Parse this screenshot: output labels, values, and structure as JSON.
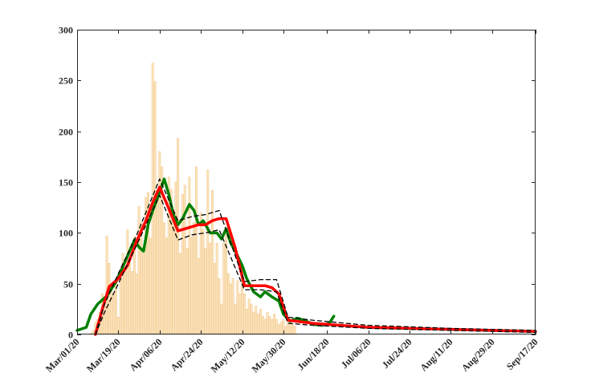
{
  "chart_data": {
    "type": "bar",
    "title": "",
    "xlabel": "",
    "ylabel": "",
    "ylim": [
      0,
      300
    ],
    "yticks": [
      0,
      50,
      100,
      150,
      200,
      250,
      300
    ],
    "xlim": [
      "2020-03-01",
      "2020-09-17"
    ],
    "xticks": [
      "2020-03-01",
      "2020-03-19",
      "2020-04-06",
      "2020-04-24",
      "2020-05-12",
      "2020-05-30",
      "2020-06-18",
      "2020-07-06",
      "2020-07-24",
      "2020-08-11",
      "2020-08-29",
      "2020-09-17"
    ],
    "xtick_labels": [
      "Mar/01/20",
      "Mar/19/20",
      "Apr/06/20",
      "Apr/24/20",
      "May/12/20",
      "May/30/20",
      "Jun/18/20",
      "Jul/06/20",
      "Jul/24/20",
      "Aug/11/20",
      "Aug/29/20",
      "Sep/17/20"
    ],
    "grid": false,
    "bars": {
      "start_date": "2020-03-01",
      "color": "#fbe3bd",
      "edge_color": "#f2c98a",
      "values": [
        0,
        0,
        0,
        0,
        0,
        0,
        1,
        4,
        12,
        15,
        22,
        40,
        28,
        97,
        70,
        45,
        40,
        52,
        17,
        55,
        80,
        65,
        103,
        70,
        62,
        96,
        60,
        126,
        110,
        80,
        135,
        140,
        95,
        267,
        249,
        140,
        180,
        165,
        110,
        95,
        155,
        143,
        120,
        150,
        193,
        80,
        138,
        147,
        85,
        155,
        96,
        110,
        165,
        75,
        120,
        103,
        85,
        162,
        90,
        142,
        70,
        90,
        55,
        30,
        90,
        100,
        60,
        50,
        55,
        30,
        53,
        40,
        65,
        40,
        25,
        35,
        30,
        22,
        28,
        20,
        25,
        18,
        15,
        22,
        18,
        15,
        20,
        15,
        10,
        12,
        15,
        8,
        12,
        10,
        10,
        8,
        0,
        0,
        0,
        0,
        0,
        0,
        0,
        0,
        0,
        0,
        0,
        0,
        0,
        0,
        0,
        0,
        0,
        0,
        0,
        0,
        0,
        0,
        0,
        0,
        0,
        0,
        0,
        0,
        0,
        0,
        0,
        0,
        0,
        0,
        0,
        0,
        0,
        0,
        0,
        0,
        0,
        0,
        0,
        0,
        0,
        0,
        0,
        0,
        0,
        0,
        0,
        0,
        0,
        0,
        0,
        0,
        0,
        0,
        0,
        0,
        0,
        0,
        0,
        0,
        0,
        0,
        0,
        0,
        0,
        0,
        0,
        0,
        0,
        0,
        0,
        0,
        0,
        0,
        0,
        0,
        0,
        0,
        0,
        0,
        0,
        0,
        0,
        0,
        0,
        0,
        0,
        0,
        0,
        0,
        0,
        0,
        0,
        0,
        0,
        0,
        0,
        0
      ]
    },
    "series": [
      {
        "color": "#008000",
        "style": "solid",
        "x": [
          "2020-03-01",
          "2020-03-05",
          "2020-03-07",
          "2020-03-10",
          "2020-03-14",
          "2020-03-18",
          "2020-03-22",
          "2020-03-26",
          "2020-03-28",
          "2020-03-30",
          "2020-04-01",
          "2020-04-03",
          "2020-04-06",
          "2020-04-08",
          "2020-04-10",
          "2020-04-12",
          "2020-04-14",
          "2020-04-16",
          "2020-04-19",
          "2020-04-21",
          "2020-04-23",
          "2020-04-25",
          "2020-04-28",
          "2020-05-01",
          "2020-05-03",
          "2020-05-05",
          "2020-05-07",
          "2020-05-09",
          "2020-05-12",
          "2020-05-14",
          "2020-05-17",
          "2020-05-20",
          "2020-05-22",
          "2020-05-25",
          "2020-05-28",
          "2020-05-30",
          "2020-06-02",
          "2020-06-05",
          "2020-06-08",
          "2020-06-12",
          "2020-06-16",
          "2020-06-19",
          "2020-06-21"
        ],
        "values": [
          4,
          7,
          20,
          30,
          38,
          52,
          72,
          93,
          86,
          82,
          108,
          122,
          140,
          153,
          138,
          118,
          108,
          114,
          128,
          122,
          108,
          112,
          100,
          100,
          94,
          104,
          90,
          82,
          68,
          55,
          42,
          37,
          42,
          37,
          33,
          20,
          13,
          16,
          14,
          10,
          9,
          11,
          18
        ]
      },
      {
        "color": "#ff0000",
        "style": "solid",
        "x": [
          "2020-03-09",
          "2020-03-12",
          "2020-03-15",
          "2020-03-19",
          "2020-03-23",
          "2020-03-27",
          "2020-03-31",
          "2020-04-03",
          "2020-04-06",
          "2020-04-10",
          "2020-04-14",
          "2020-04-17",
          "2020-04-20",
          "2020-04-23",
          "2020-04-26",
          "2020-04-29",
          "2020-05-02",
          "2020-05-05",
          "2020-05-09",
          "2020-05-13",
          "2020-05-16",
          "2020-05-19",
          "2020-05-22",
          "2020-05-25",
          "2020-05-28",
          "2020-06-01",
          "2020-06-12",
          "2020-07-06",
          "2020-08-11",
          "2020-09-17"
        ],
        "values": [
          0,
          25,
          47,
          55,
          68,
          92,
          112,
          130,
          145,
          124,
          102,
          104,
          106,
          108,
          108,
          112,
          114,
          114,
          85,
          48,
          48,
          48,
          48,
          46,
          40,
          14,
          11,
          7,
          5,
          3
        ]
      },
      {
        "color": "#000000",
        "style": "dashed",
        "x": [
          "2020-03-09",
          "2020-03-13",
          "2020-03-19",
          "2020-03-27",
          "2020-04-06",
          "2020-04-14",
          "2020-04-20",
          "2020-04-26",
          "2020-05-02",
          "2020-05-13",
          "2020-05-20",
          "2020-05-27",
          "2020-06-01",
          "2020-06-12",
          "2020-07-06",
          "2020-08-11",
          "2020-09-17"
        ],
        "values": [
          0,
          30,
          60,
          98,
          153,
          112,
          116,
          118,
          122,
          52,
          54,
          54,
          17,
          14,
          9,
          6,
          4
        ]
      },
      {
        "color": "#000000",
        "style": "dashed",
        "x": [
          "2020-03-09",
          "2020-03-13",
          "2020-03-19",
          "2020-03-27",
          "2020-04-06",
          "2020-04-14",
          "2020-04-20",
          "2020-04-26",
          "2020-05-02",
          "2020-05-13",
          "2020-05-20",
          "2020-05-27",
          "2020-06-01",
          "2020-06-12",
          "2020-07-06",
          "2020-08-11",
          "2020-09-17"
        ],
        "values": [
          0,
          22,
          50,
          88,
          137,
          93,
          98,
          100,
          103,
          44,
          44,
          42,
          11,
          9,
          6,
          4,
          2
        ]
      }
    ]
  }
}
